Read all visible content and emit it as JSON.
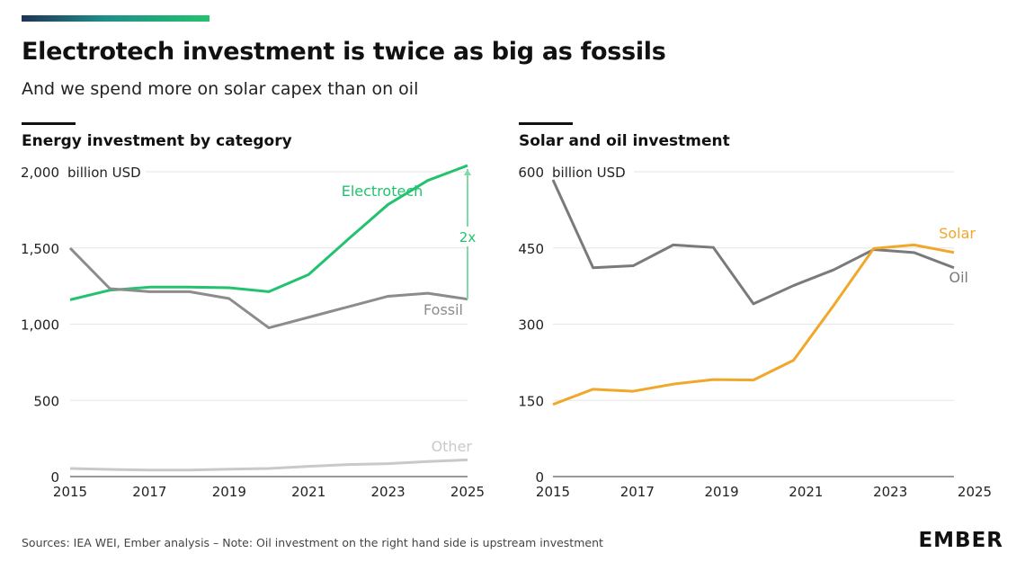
{
  "header": {
    "title": "Electrotech investment is twice as big as fossils",
    "subtitle": "And we spend more on solar capex than on oil"
  },
  "footer": {
    "source": "Sources: IEA WEI, Ember analysis – Note: Oil investment on the right hand side is upstream investment",
    "logo": "EMBER"
  },
  "colors": {
    "electrotech": "#22c26e",
    "fossil": "#8c8c8c",
    "other": "#c9c9c9",
    "solar": "#f0a72a",
    "oil": "#7a7a7a",
    "grid": "#e6e6e6"
  },
  "chart_data": [
    {
      "type": "line",
      "title": "Energy investment by category",
      "ylabel": "billion USD",
      "x": [
        2015,
        2016,
        2017,
        2018,
        2019,
        2020,
        2021,
        2022,
        2023,
        2024,
        2025
      ],
      "xticks": [
        "2015",
        "2017",
        "2019",
        "2021",
        "2023",
        "2025"
      ],
      "yticks": [
        {
          "v": 0,
          "label": "0"
        },
        {
          "v": 500,
          "label": "500"
        },
        {
          "v": 1000,
          "label": "1,000"
        },
        {
          "v": 1500,
          "label": "1,500"
        },
        {
          "v": 2000,
          "label": "2,000"
        }
      ],
      "ylim": [
        0,
        2000
      ],
      "grid": true,
      "series": [
        {
          "name": "Electrotech",
          "color_key": "electrotech",
          "values": [
            1160,
            1223,
            1243,
            1243,
            1239,
            1213,
            1325,
            1558,
            1785,
            1943,
            2041
          ]
        },
        {
          "name": "Fossil",
          "color_key": "fossil",
          "values": [
            1499,
            1233,
            1213,
            1213,
            1168,
            976,
            1045,
            1114,
            1183,
            1203,
            1164
          ]
        },
        {
          "name": "Other",
          "color_key": "other",
          "values": [
            53,
            47,
            43,
            43,
            49,
            53,
            67,
            79,
            85,
            99,
            110
          ]
        }
      ],
      "annotation": {
        "label": "2x",
        "year": 2025,
        "from": 1164,
        "to": 2041
      }
    },
    {
      "type": "line",
      "title": "Solar and oil investment",
      "ylabel": "billion USD",
      "x": [
        2015,
        2016,
        2017,
        2018,
        2019,
        2020,
        2021,
        2022,
        2023,
        2024,
        2025
      ],
      "xticks": [
        "2015",
        "2017",
        "2019",
        "2021",
        "2023",
        "2025"
      ],
      "yticks": [
        {
          "v": 0,
          "label": "0"
        },
        {
          "v": 150,
          "label": "150"
        },
        {
          "v": 300,
          "label": "300"
        },
        {
          "v": 450,
          "label": "450"
        },
        {
          "v": 600,
          "label": "600"
        }
      ],
      "ylim": [
        0,
        600
      ],
      "grid": true,
      "series": [
        {
          "name": "Oil",
          "color_key": "oil",
          "values": [
            625,
            411,
            415,
            456,
            451,
            340,
            376,
            407,
            447,
            441,
            411
          ]
        },
        {
          "name": "Solar",
          "color_key": "solar",
          "values": [
            142,
            172,
            168,
            182,
            191,
            190,
            229,
            337,
            449,
            456,
            441
          ]
        }
      ]
    }
  ]
}
